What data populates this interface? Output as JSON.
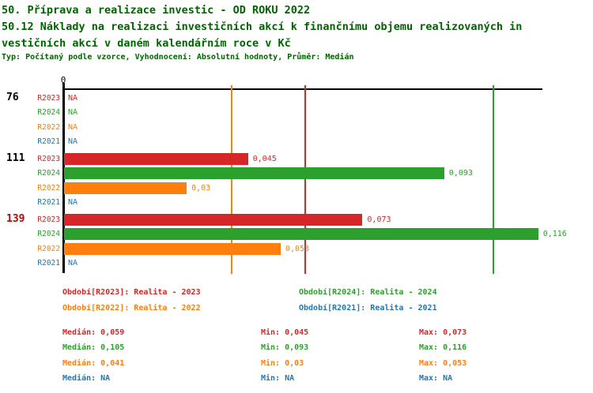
{
  "header": {
    "title_line1": "50. Příprava a realizace investic - OD ROKU 2022",
    "title_line2": "50.12 Náklady na realizaci investičních akcí k finančnímu objemu realizovaných in",
    "title_line3": "vestičních akcí v daném kalendářním roce v Kč",
    "meta": "Typ: Počítaný podle vzorce, Vyhodnocení: Absolutní hodnoty, Průměr: Medián"
  },
  "colors": {
    "title": "#006400",
    "r2023": "#d62728",
    "r2024": "#2ca02c",
    "r2022": "#ff7f0e",
    "r2021": "#1f77b4",
    "axis": "#000000",
    "group_normal": "#000000",
    "group_highlight": "#cc0000"
  },
  "chart_data": {
    "type": "bar",
    "orientation": "horizontal",
    "value_axis_origin_label": "0",
    "na_text": "NA",
    "series_order": [
      "R2023",
      "R2024",
      "R2022",
      "R2021"
    ],
    "groups": [
      {
        "label": "76",
        "highlighted": false,
        "bars": [
          {
            "series": "R2023",
            "value": null,
            "display": "NA"
          },
          {
            "series": "R2024",
            "value": null,
            "display": "NA"
          },
          {
            "series": "R2022",
            "value": null,
            "display": "NA"
          },
          {
            "series": "R2021",
            "value": null,
            "display": "NA"
          }
        ]
      },
      {
        "label": "111",
        "highlighted": false,
        "bars": [
          {
            "series": "R2023",
            "value": 0.045,
            "display": "0,045"
          },
          {
            "series": "R2024",
            "value": 0.093,
            "display": "0,093"
          },
          {
            "series": "R2022",
            "value": 0.03,
            "display": "0,03"
          },
          {
            "series": "R2021",
            "value": null,
            "display": "NA"
          }
        ]
      },
      {
        "label": "139",
        "highlighted": true,
        "bars": [
          {
            "series": "R2023",
            "value": 0.073,
            "display": "0,073"
          },
          {
            "series": "R2024",
            "value": 0.116,
            "display": "0,116"
          },
          {
            "series": "R2022",
            "value": 0.053,
            "display": "0,053"
          },
          {
            "series": "R2021",
            "value": null,
            "display": "NA"
          }
        ]
      }
    ],
    "median_lines": [
      {
        "series": "R2023",
        "value": 0.059
      },
      {
        "series": "R2024",
        "value": 0.105
      },
      {
        "series": "R2022",
        "value": 0.041
      }
    ],
    "legend": [
      {
        "series": "R2023",
        "text": "Období[R2023]: Realita - 2023"
      },
      {
        "series": "R2024",
        "text": "Období[R2024]: Realita - 2024"
      },
      {
        "series": "R2022",
        "text": "Období[R2022]: Realita - 2022"
      },
      {
        "series": "R2021",
        "text": "Období[R2021]: Realita - 2021"
      }
    ],
    "stats": [
      {
        "series": "R2023",
        "median": "Medián: 0,059",
        "min": "Min: 0,045",
        "max": "Max: 0,073"
      },
      {
        "series": "R2024",
        "median": "Medián: 0,105",
        "min": "Min: 0,093",
        "max": "Max: 0,116"
      },
      {
        "series": "R2022",
        "median": "Medián: 0,041",
        "min": "Min: 0,03",
        "max": "Max: 0,053"
      },
      {
        "series": "R2021",
        "median": "Medián: NA",
        "min": "Min: NA",
        "max": "Max: NA"
      }
    ]
  }
}
